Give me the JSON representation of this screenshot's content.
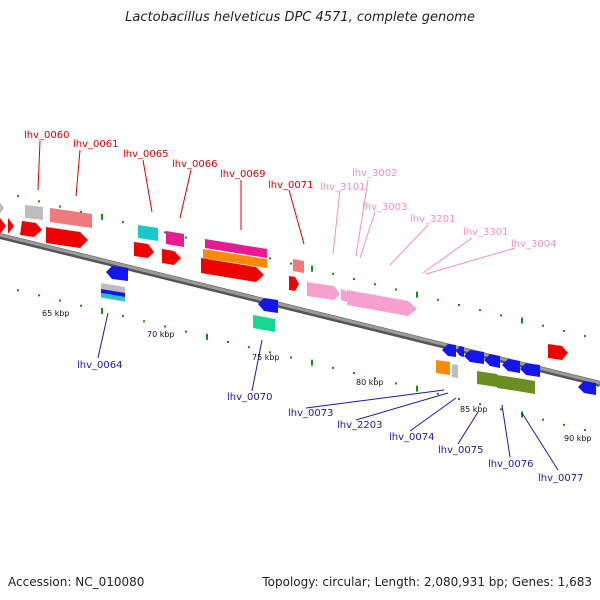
{
  "title": "Lactobacillus helveticus DPC 4571, complete genome",
  "footer": {
    "accession": "Accession: NC_010080",
    "summary": "Topology: circular; Length: 2,080,931 bp; Genes: 1,683"
  },
  "colors": {
    "top_label": "#dd0000",
    "rna_label": "#f090c0",
    "bottom_label": "#1a1aa0",
    "backbone": "#7a7a7a",
    "tick": "#1a8a1a"
  },
  "scale": {
    "unit": "kbp",
    "ticks": [
      {
        "kbp": 65,
        "label": "65 kbp"
      },
      {
        "kbp": 70,
        "label": "70 kbp"
      },
      {
        "kbp": 75,
        "label": "75 kbp"
      },
      {
        "kbp": 80,
        "label": "80 kbp"
      },
      {
        "kbp": 85,
        "label": "85 kbp"
      },
      {
        "kbp": 90,
        "label": "90 kbp"
      }
    ]
  },
  "top_genes": [
    {
      "id": "lhv_0060",
      "label": "lhv_0060",
      "name": "gene-label-lhv-0060"
    },
    {
      "id": "lhv_0061",
      "label": "lhv_0061",
      "name": "gene-label-lhv-0061"
    },
    {
      "id": "lhv_0065",
      "label": "lhv_0065",
      "name": "gene-label-lhv-0065"
    },
    {
      "id": "lhv_0066",
      "label": "lhv_0066",
      "name": "gene-label-lhv-0066"
    },
    {
      "id": "lhv_0069",
      "label": "lhv_0069",
      "name": "gene-label-lhv-0069"
    },
    {
      "id": "lhv_0071",
      "label": "lhv_0071",
      "name": "gene-label-lhv-0071"
    }
  ],
  "rna_genes": [
    {
      "id": "lhv_3101",
      "label": "lhv_3101",
      "name": "gene-label-lhv-3101"
    },
    {
      "id": "lhv_3002",
      "label": "lhv_3002",
      "name": "gene-label-lhv-3002"
    },
    {
      "id": "lhv_3003",
      "label": "lhv_3003",
      "name": "gene-label-lhv-3003"
    },
    {
      "id": "lhv_3201",
      "label": "lhv_3201",
      "name": "gene-label-lhv-3201"
    },
    {
      "id": "lhv_3301",
      "label": "lhv_3301",
      "name": "gene-label-lhv-3301"
    },
    {
      "id": "lhv_3004",
      "label": "lhv_3004",
      "name": "gene-label-lhv-3004"
    }
  ],
  "bottom_genes": [
    {
      "id": "lhv_0064",
      "label": "lhv_0064",
      "name": "gene-label-lhv-0064"
    },
    {
      "id": "lhv_0070",
      "label": "lhv_0070",
      "name": "gene-label-lhv-0070"
    },
    {
      "id": "lhv_0073",
      "label": "lhv_0073",
      "name": "gene-label-lhv-0073"
    },
    {
      "id": "lhv_2203",
      "label": "lhv_2203",
      "name": "gene-label-lhv-2203"
    },
    {
      "id": "lhv_0074",
      "label": "lhv_0074",
      "name": "gene-label-lhv-0074"
    },
    {
      "id": "lhv_0075",
      "label": "lhv_0075",
      "name": "gene-label-lhv-0075"
    },
    {
      "id": "lhv_0076",
      "label": "lhv_0076",
      "name": "gene-label-lhv-0076"
    },
    {
      "id": "lhv_0077",
      "label": "lhv_0077",
      "name": "gene-label-lhv-0077"
    }
  ]
}
